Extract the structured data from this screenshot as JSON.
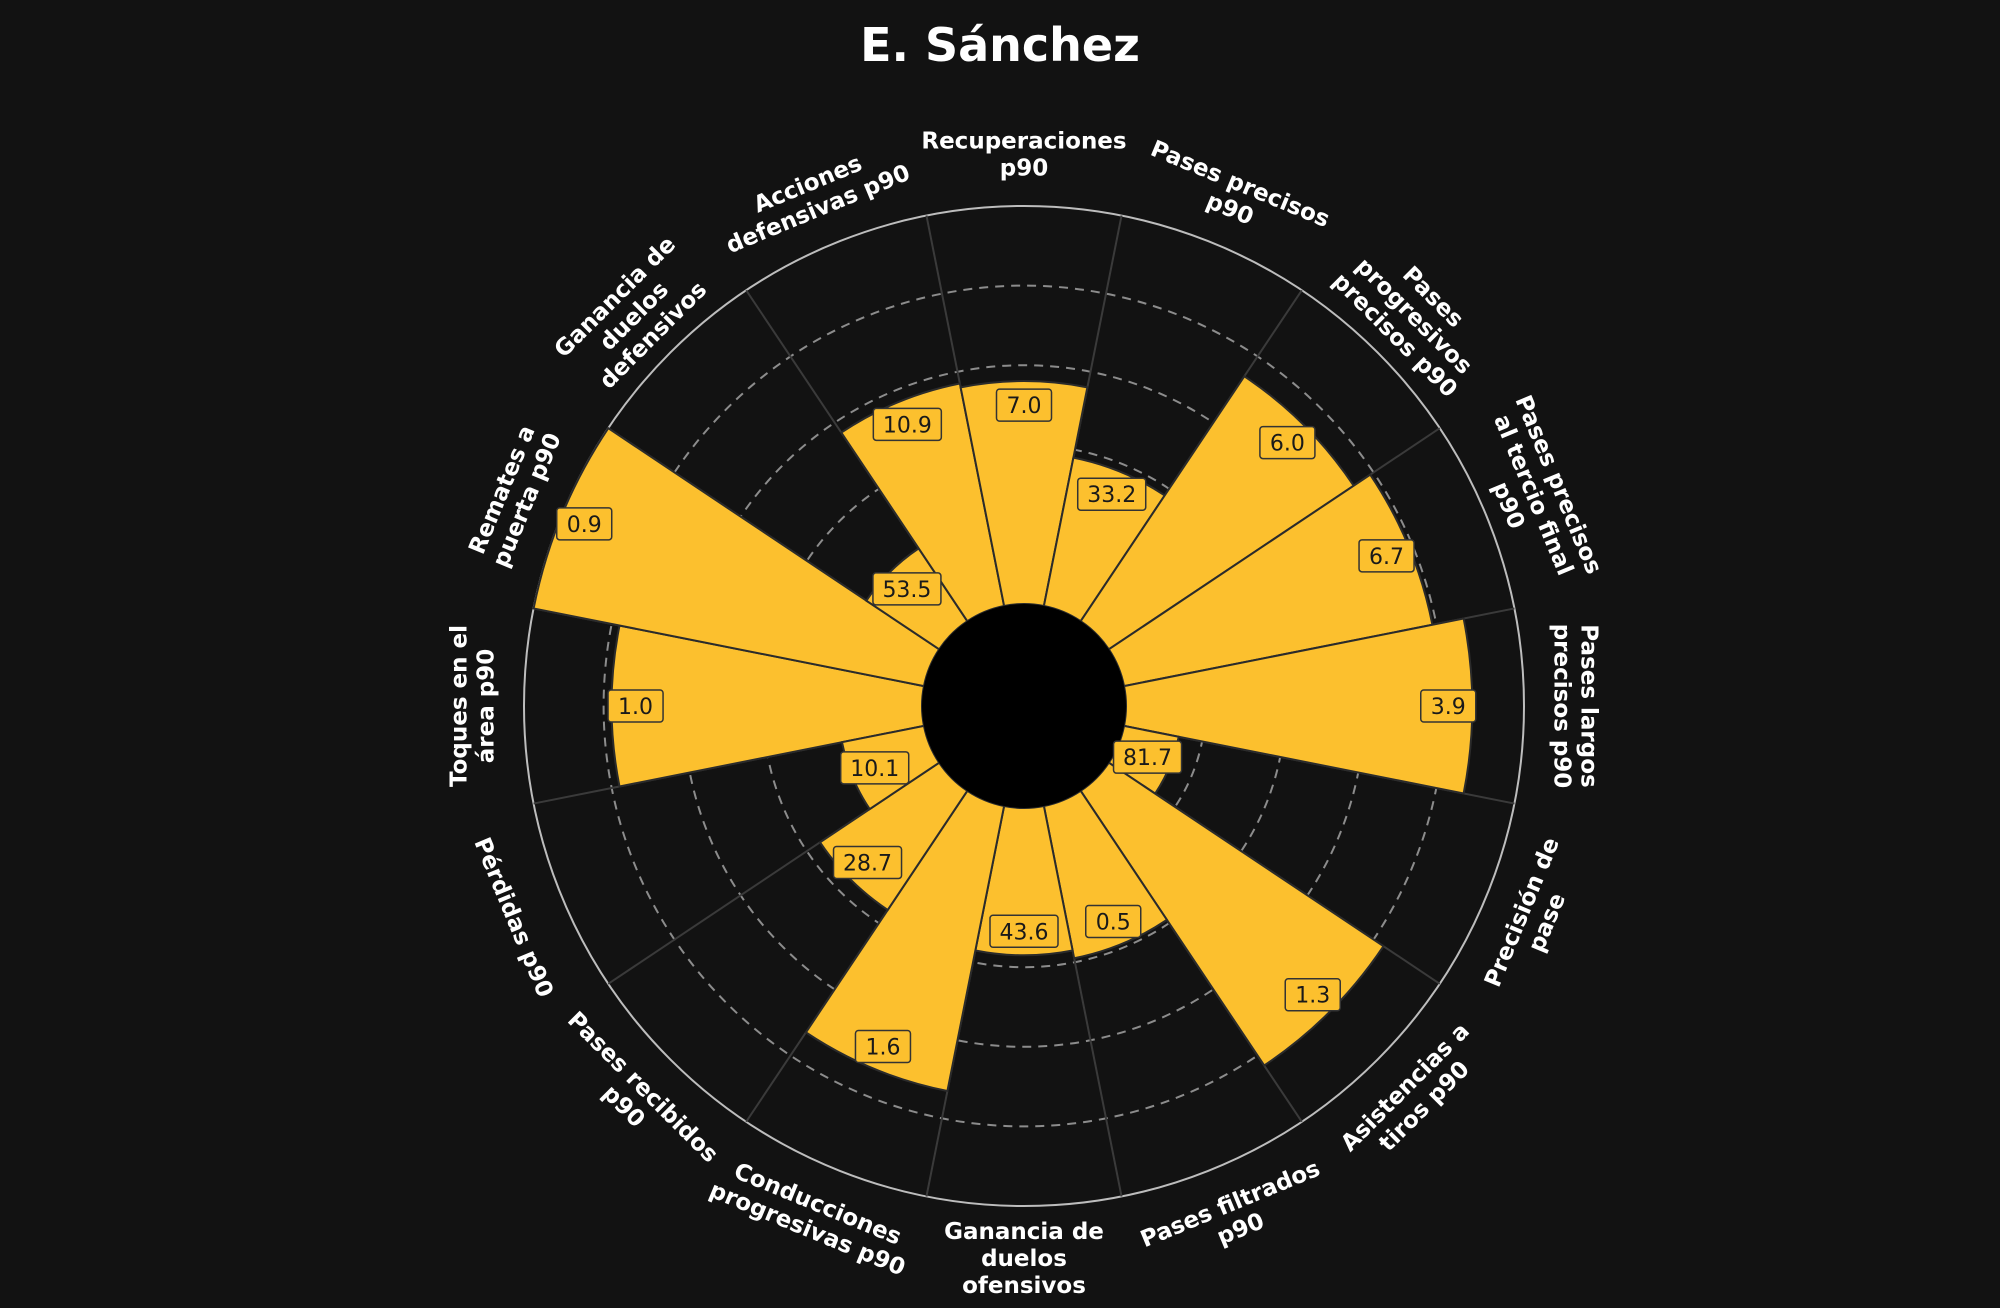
{
  "chart_data": {
    "type": "polar-bar",
    "title": "E. Sánchez",
    "categories": [
      "Toques en el\nárea p90",
      "Remates a\npuerta p90",
      "Ganancia de\nduelos\ndefensivos",
      "Acciones\ndefensivas p90",
      "Recuperaciones\np90",
      "Pases precisos\np90",
      "Pases\nprogresivos\nprecisos p90",
      "Pases precisos\nal tercio final\np90",
      "Pases largos\nprecisos p90",
      "Precisión de\npase",
      "Asistencias a\ntiros p90",
      "Pases filtrados\np90",
      "Ganancia de\nduelos\nofensivos",
      "Conducciones\nprogresivas p90",
      "Pases recibidos\np90",
      "Pérdidas p90"
    ],
    "value_labels": [
      "1.0",
      "0.9",
      "53.5",
      "10.9",
      "7.0",
      "33.2",
      "6.0",
      "6.7",
      "3.9",
      "81.7",
      "1.3",
      "0.5",
      "43.6",
      "1.6",
      "28.7",
      "10.1"
    ],
    "percentiles": [
      78,
      100,
      22,
      57,
      56,
      38,
      74,
      79,
      87,
      14,
      83,
      39,
      37,
      73,
      36,
      21
    ],
    "rlim": [
      0,
      100
    ],
    "grid": true,
    "colors": {
      "background": "#121212",
      "bar": "#fcc02e",
      "bar_edge": "#2b2b2b",
      "grid_dashed": "#8c8c8c",
      "outer_ring": "#bdbdbd",
      "spoke": "#3a3a3a",
      "center": "#000000",
      "text": "#ffffff",
      "value_text": "#1a1a1a"
    }
  }
}
